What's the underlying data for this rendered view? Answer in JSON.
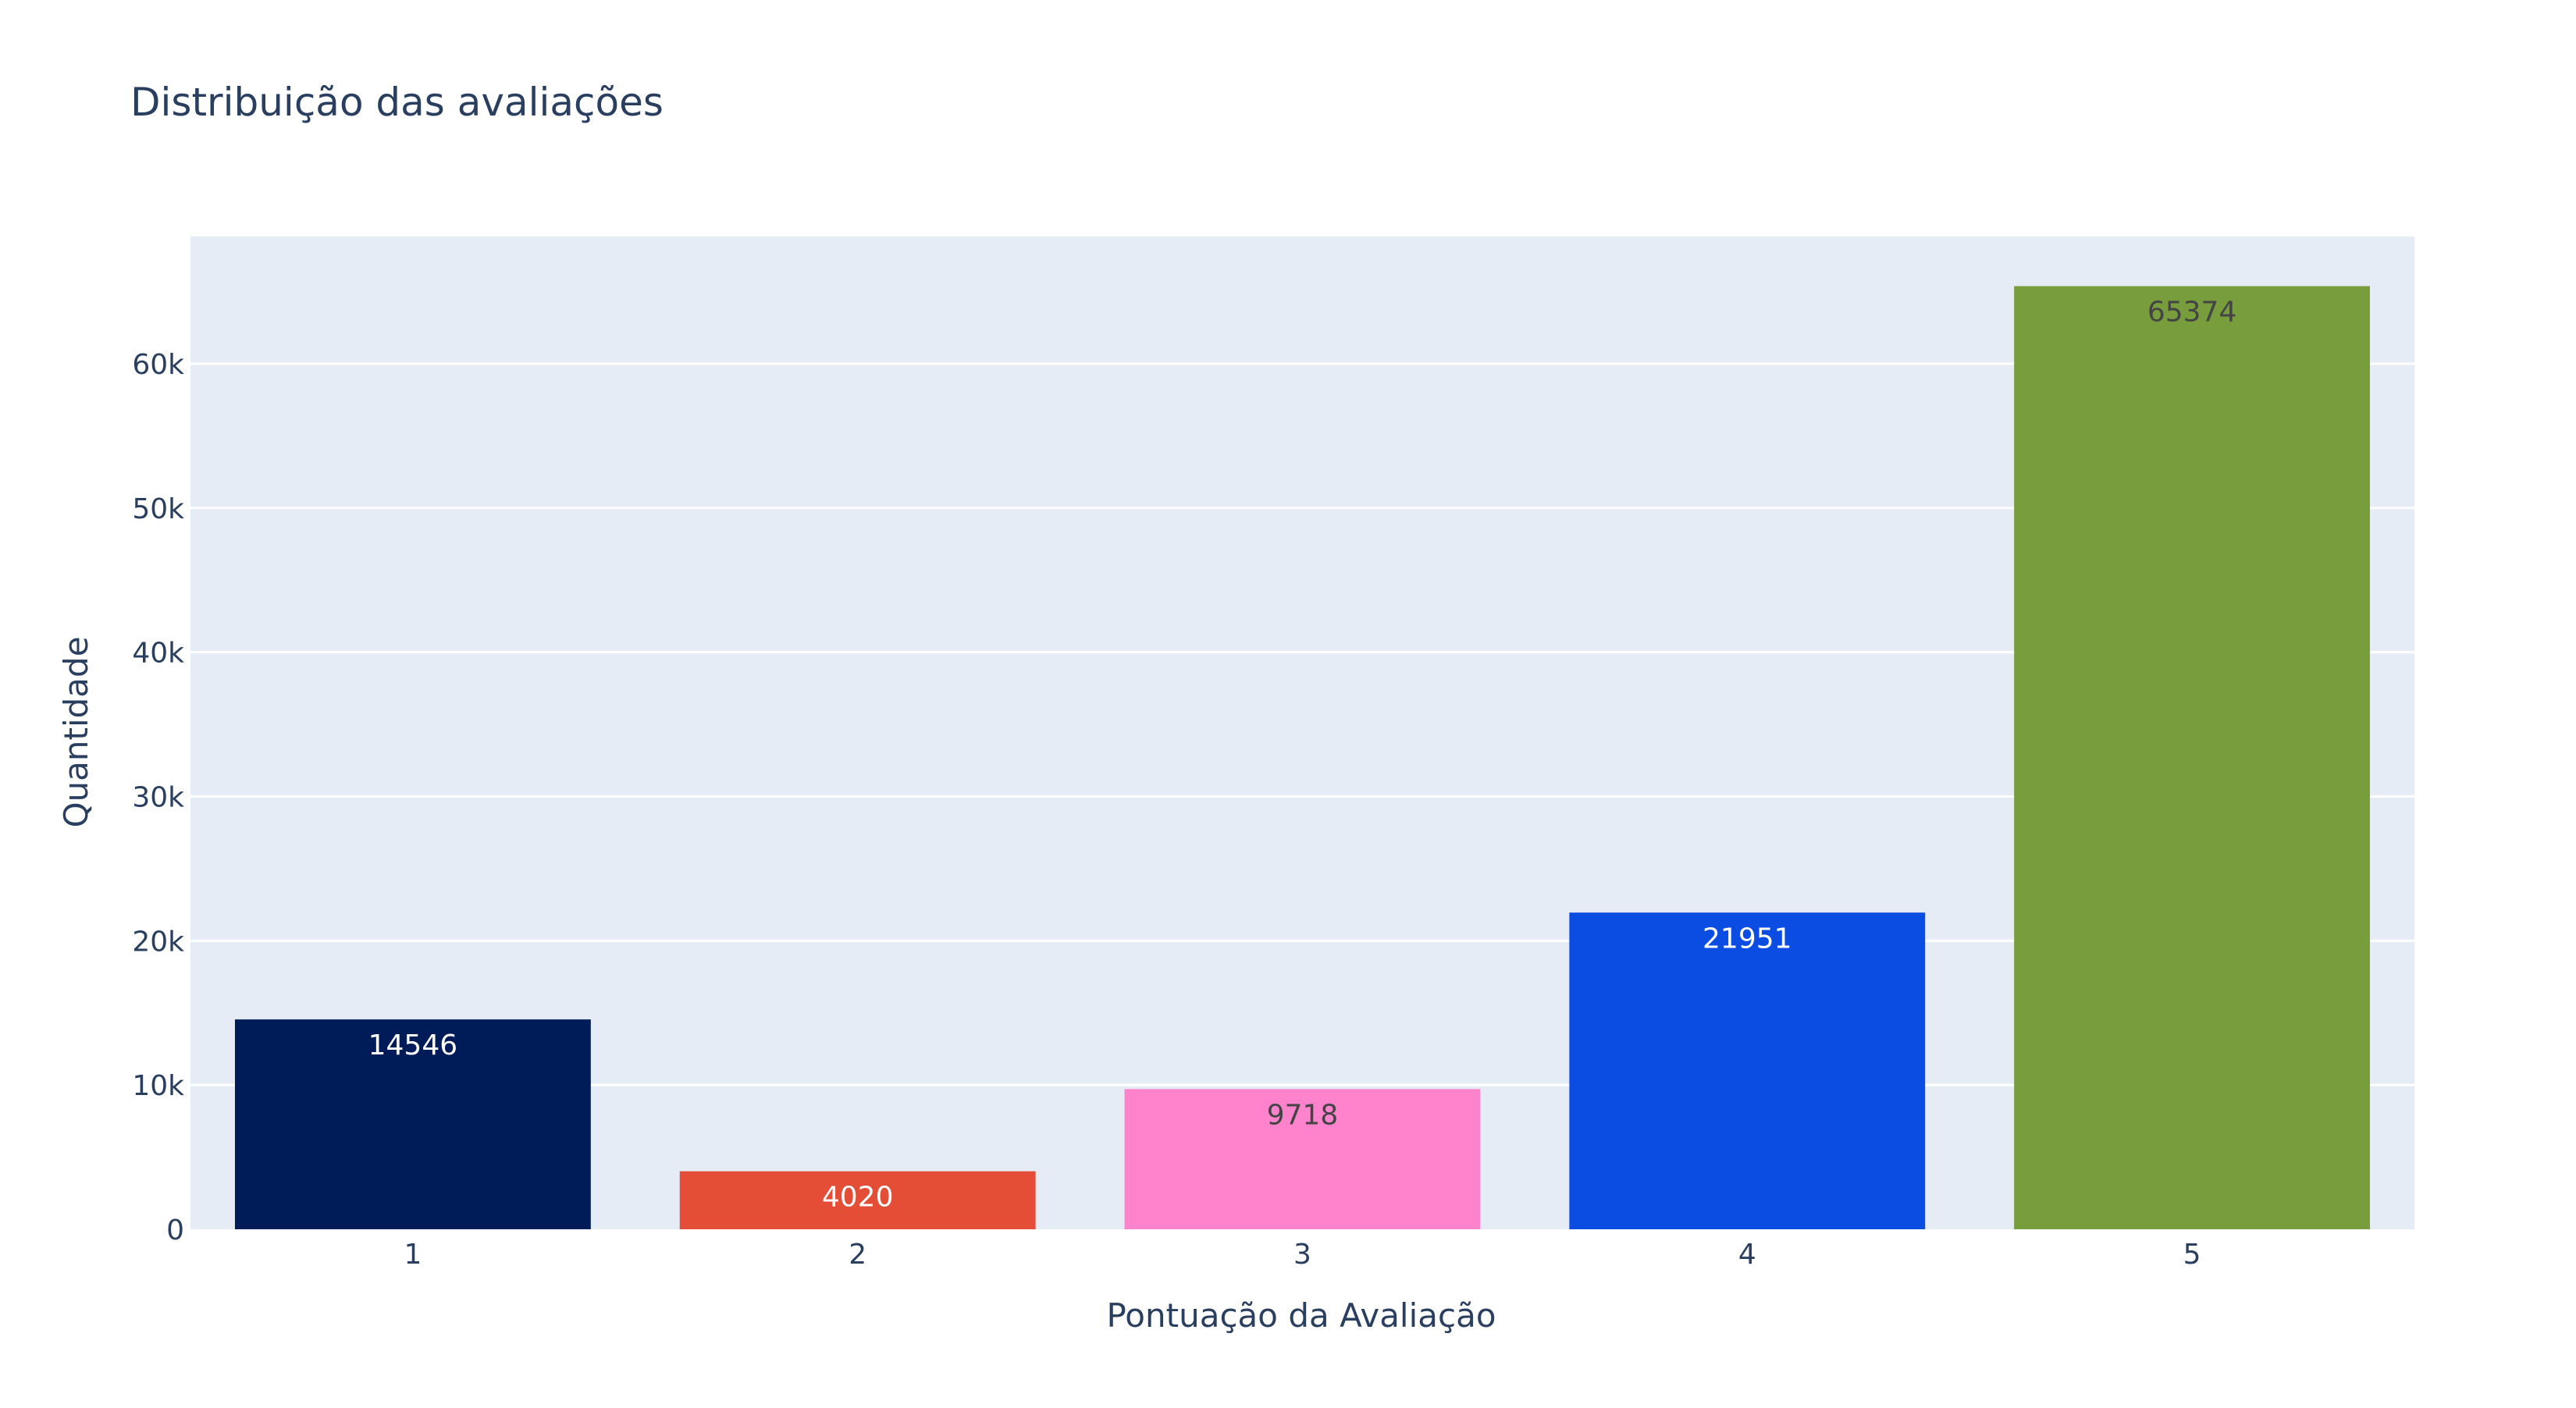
{
  "chart_data": {
    "type": "bar",
    "title": "Distribuição das avaliações",
    "xlabel": "Pontuação da Avaliação",
    "ylabel": "Quantidade",
    "categories": [
      "1",
      "2",
      "3",
      "4",
      "5"
    ],
    "values": [
      14546,
      4020,
      9718,
      21951,
      65374
    ],
    "data_labels": [
      "14546",
      "4020",
      "9718",
      "21951",
      "65374"
    ],
    "colors": [
      "#001c58",
      "#e44d36",
      "#fe83cc",
      "#0b4de2",
      "#779d3c"
    ],
    "label_colors": [
      "#ffffff",
      "#ffffff",
      "#444444",
      "#ffffff",
      "#444444"
    ],
    "ylim": [
      0,
      68815
    ],
    "yticks": [
      0,
      10000,
      20000,
      30000,
      40000,
      50000,
      60000
    ],
    "ytick_labels": [
      "0",
      "10k",
      "20k",
      "30k",
      "40k",
      "50k",
      "60k"
    ],
    "grid": true,
    "legend": "none",
    "plot_background": "#e5ecf6",
    "text_color": "#2a3f5f"
  }
}
